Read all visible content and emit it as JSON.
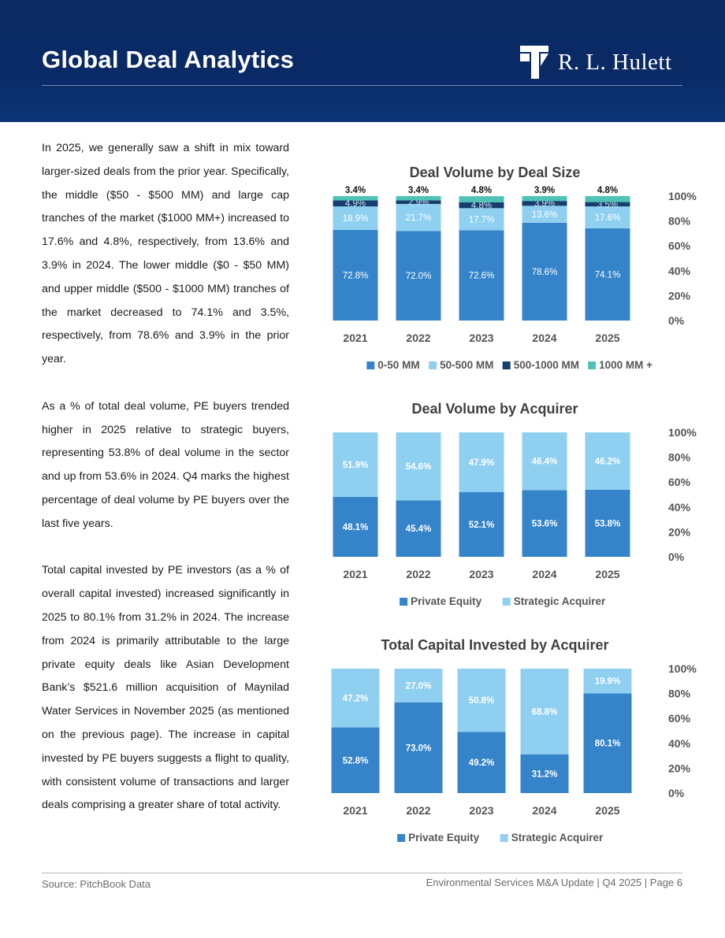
{
  "header": {
    "title": "Global Deal Analytics",
    "logo_text": "R. L. Hulett"
  },
  "body": {
    "paragraphs": [
      "In 2025, we generally saw a shift in mix toward larger-sized deals from the prior year. Specifically, the middle ($50 - $500 MM) and large cap tranches of the market ($1000 MM+) increased to 17.6% and 4.8%, respectively, from 13.6% and 3.9% in 2024. The lower middle ($0 - $50 MM) and upper middle ($500 - $1000 MM) tranches of the market decreased to 74.1% and 3.5%, respectively, from 78.6% and 3.9% in the prior year.",
      "As a % of total deal volume, PE buyers trended higher in 2025 relative to strategic buyers, representing 53.8% of deal volume in the sector and up from 53.6% in 2024. Q4 marks the highest percentage of deal volume by PE buyers over the last five years.",
      "Total capital invested by PE investors (as a % of overall capital invested) increased significantly in 2025 to 80.1% from 31.2% in 2024. The increase from 2024 is primarily attributable to the large private equity deals like Asian Development Bank’s $521.6 million acquisition of Maynilad Water Services in November 2025 (as mentioned on the previous page). The increase in capital invested by PE buyers suggests a flight to quality, with consistent volume of transactions and larger deals comprising a greater share of total activity."
    ]
  },
  "footer": {
    "source": "Source: PitchBook Data",
    "page_info": "Environmental Services M&A Update | Q4 2025 | Page 6"
  },
  "colors": {
    "header_bg": "#0b2a63",
    "dark_blue": "#3584c9",
    "light_blue": "#8fd0f0",
    "navy": "#163e6e",
    "teal": "#4fc3b8",
    "title_text": "#404040"
  },
  "chart_data": [
    {
      "type": "bar",
      "stacked": true,
      "title": "Deal Volume by Deal Size",
      "categories": [
        "2021",
        "2022",
        "2023",
        "2024",
        "2025"
      ],
      "series": [
        {
          "name": "0-50 MM",
          "values": [
            72.8,
            72.0,
            72.6,
            78.6,
            74.1
          ],
          "labels": [
            "72.8%",
            "72.0%",
            "72.6%",
            "78.6%",
            "74.1%"
          ]
        },
        {
          "name": "50-500 MM",
          "values": [
            18.9,
            21.7,
            17.7,
            13.6,
            17.6
          ],
          "labels": [
            "18.9%",
            "21.7%",
            "17.7%",
            "13.6%",
            "17.6%"
          ]
        },
        {
          "name": "500-1000 MM",
          "values": [
            4.9,
            2.9,
            4.8,
            3.9,
            3.5
          ],
          "labels": [
            "4.9%",
            "2.9%",
            "4.8%",
            "3.9%",
            "3.5%"
          ]
        },
        {
          "name": "1000 MM +",
          "values": [
            3.4,
            3.4,
            4.8,
            3.9,
            4.8
          ],
          "labels": [
            "3.4%",
            "3.4%",
            "4.8%",
            "3.9%",
            "4.8%"
          ]
        }
      ],
      "yticks": [
        "0%",
        "20%",
        "40%",
        "60%",
        "80%",
        "100%"
      ],
      "ylim": [
        0,
        100
      ],
      "legend": "bottom",
      "grid": false
    },
    {
      "type": "bar",
      "stacked": true,
      "title": "Deal Volume by Acquirer",
      "categories": [
        "2021",
        "2022",
        "2023",
        "2024",
        "2025"
      ],
      "series": [
        {
          "name": "Private Equity",
          "values": [
            48.1,
            45.4,
            52.1,
            53.6,
            53.8
          ],
          "labels": [
            "48.1%",
            "45.4%",
            "52.1%",
            "53.6%",
            "53.8%"
          ]
        },
        {
          "name": "Strategic Acquirer",
          "values": [
            51.9,
            54.6,
            47.9,
            46.4,
            46.2
          ],
          "labels": [
            "51.9%",
            "54.6%",
            "47.9%",
            "46.4%",
            "46.2%"
          ]
        }
      ],
      "yticks": [
        "0%",
        "20%",
        "40%",
        "60%",
        "80%",
        "100%"
      ],
      "ylim": [
        0,
        100
      ],
      "legend": "bottom",
      "grid": false
    },
    {
      "type": "bar",
      "stacked": true,
      "title": "Total Capital Invested by Acquirer",
      "categories": [
        "2021",
        "2022",
        "2023",
        "2024",
        "2025"
      ],
      "series": [
        {
          "name": "Private Equity",
          "values": [
            52.8,
            73.0,
            49.2,
            31.2,
            80.1
          ],
          "labels": [
            "52.8%",
            "73.0%",
            "49.2%",
            "31.2%",
            "80.1%"
          ]
        },
        {
          "name": "Strategic Acquirer",
          "values": [
            47.2,
            27.0,
            50.8,
            68.8,
            19.9
          ],
          "labels": [
            "47.2%",
            "27.0%",
            "50.8%",
            "68.8%",
            "19.9%"
          ]
        }
      ],
      "yticks": [
        "0%",
        "20%",
        "40%",
        "60%",
        "80%",
        "100%"
      ],
      "ylim": [
        0,
        100
      ],
      "legend": "bottom",
      "grid": false
    }
  ]
}
